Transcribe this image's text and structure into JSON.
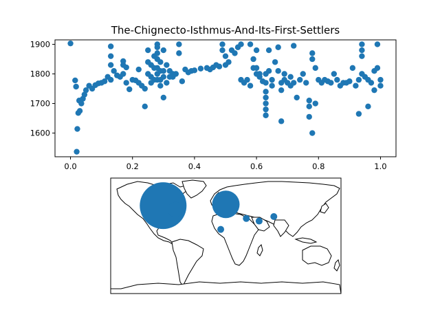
{
  "chart_data": [
    {
      "type": "scatter",
      "title": "The-Chignecto-Isthmus-And-Its-First-Settlers",
      "xlabel": "",
      "ylabel": "",
      "xlim": [
        -0.05,
        1.05
      ],
      "ylim": [
        1520,
        1915
      ],
      "xticks": [
        "0.0",
        "0.2",
        "0.4",
        "0.6",
        "0.8",
        "1.0"
      ],
      "yticks": [
        "1600",
        "1700",
        "1800",
        "1900"
      ],
      "color": "#1f77b4",
      "grid": false,
      "points": [
        [
          0.0,
          1903
        ],
        [
          0.02,
          1537
        ],
        [
          0.022,
          1614
        ],
        [
          0.025,
          1668
        ],
        [
          0.028,
          1710
        ],
        [
          0.03,
          1675
        ],
        [
          0.035,
          1700
        ],
        [
          0.04,
          1716
        ],
        [
          0.045,
          1730
        ],
        [
          0.05,
          1745
        ],
        [
          0.015,
          1778
        ],
        [
          0.018,
          1757
        ],
        [
          0.06,
          1760
        ],
        [
          0.07,
          1750
        ],
        [
          0.08,
          1762
        ],
        [
          0.09,
          1768
        ],
        [
          0.1,
          1770
        ],
        [
          0.11,
          1775
        ],
        [
          0.12,
          1790
        ],
        [
          0.13,
          1780
        ],
        [
          0.13,
          1830
        ],
        [
          0.13,
          1860
        ],
        [
          0.13,
          1893
        ],
        [
          0.14,
          1810
        ],
        [
          0.15,
          1795
        ],
        [
          0.16,
          1790
        ],
        [
          0.17,
          1800
        ],
        [
          0.17,
          1830
        ],
        [
          0.17,
          1843
        ],
        [
          0.18,
          1822
        ],
        [
          0.18,
          1770
        ],
        [
          0.19,
          1748
        ],
        [
          0.2,
          1780
        ],
        [
          0.21,
          1778
        ],
        [
          0.22,
          1815
        ],
        [
          0.22,
          1770
        ],
        [
          0.23,
          1760
        ],
        [
          0.24,
          1690
        ],
        [
          0.24,
          1750
        ],
        [
          0.25,
          1800
        ],
        [
          0.25,
          1840
        ],
        [
          0.25,
          1880
        ],
        [
          0.26,
          1790
        ],
        [
          0.26,
          1830
        ],
        [
          0.27,
          1860
        ],
        [
          0.27,
          1780
        ],
        [
          0.28,
          1900
        ],
        [
          0.28,
          1890
        ],
        [
          0.28,
          1870
        ],
        [
          0.28,
          1850
        ],
        [
          0.28,
          1820
        ],
        [
          0.28,
          1800
        ],
        [
          0.28,
          1780
        ],
        [
          0.29,
          1760
        ],
        [
          0.29,
          1840
        ],
        [
          0.29,
          1810
        ],
        [
          0.3,
          1720
        ],
        [
          0.3,
          1880
        ],
        [
          0.3,
          1790
        ],
        [
          0.31,
          1830
        ],
        [
          0.31,
          1770
        ],
        [
          0.32,
          1810
        ],
        [
          0.33,
          1790
        ],
        [
          0.34,
          1800
        ],
        [
          0.35,
          1900
        ],
        [
          0.35,
          1870
        ],
        [
          0.36,
          1775
        ],
        [
          0.37,
          1815
        ],
        [
          0.38,
          1805
        ],
        [
          0.39,
          1810
        ],
        [
          0.4,
          1812
        ],
        [
          0.42,
          1818
        ],
        [
          0.44,
          1820
        ],
        [
          0.45,
          1815
        ],
        [
          0.46,
          1822
        ],
        [
          0.47,
          1830
        ],
        [
          0.48,
          1825
        ],
        [
          0.49,
          1900
        ],
        [
          0.49,
          1880
        ],
        [
          0.5,
          1860
        ],
        [
          0.5,
          1830
        ],
        [
          0.51,
          1840
        ],
        [
          0.52,
          1880
        ],
        [
          0.53,
          1870
        ],
        [
          0.54,
          1890
        ],
        [
          0.55,
          1900
        ],
        [
          0.55,
          1780
        ],
        [
          0.56,
          1770
        ],
        [
          0.57,
          1780
        ],
        [
          0.58,
          1760
        ],
        [
          0.58,
          1900
        ],
        [
          0.59,
          1850
        ],
        [
          0.59,
          1820
        ],
        [
          0.6,
          1800
        ],
        [
          0.6,
          1880
        ],
        [
          0.61,
          1790
        ],
        [
          0.62,
          1775
        ],
        [
          0.63,
          1800
        ],
        [
          0.63,
          1770
        ],
        [
          0.63,
          1740
        ],
        [
          0.63,
          1720
        ],
        [
          0.63,
          1700
        ],
        [
          0.63,
          1680
        ],
        [
          0.63,
          1660
        ],
        [
          0.64,
          1880
        ],
        [
          0.64,
          1810
        ],
        [
          0.65,
          1780
        ],
        [
          0.65,
          1760
        ],
        [
          0.66,
          1840
        ],
        [
          0.67,
          1890
        ],
        [
          0.67,
          1810
        ],
        [
          0.68,
          1770
        ],
        [
          0.68,
          1745
        ],
        [
          0.68,
          1640
        ],
        [
          0.69,
          1800
        ],
        [
          0.69,
          1780
        ],
        [
          0.7,
          1770
        ],
        [
          0.71,
          1790
        ],
        [
          0.71,
          1760
        ],
        [
          0.72,
          1770
        ],
        [
          0.72,
          1895
        ],
        [
          0.73,
          1720
        ],
        [
          0.74,
          1780
        ],
        [
          0.75,
          1800
        ],
        [
          0.76,
          1770
        ],
        [
          0.77,
          1710
        ],
        [
          0.77,
          1690
        ],
        [
          0.77,
          1655
        ],
        [
          0.78,
          1600
        ],
        [
          0.78,
          1870
        ],
        [
          0.78,
          1850
        ],
        [
          0.79,
          1820
        ],
        [
          0.79,
          1700
        ],
        [
          0.8,
          1780
        ],
        [
          0.81,
          1770
        ],
        [
          0.82,
          1780
        ],
        [
          0.83,
          1775
        ],
        [
          0.84,
          1770
        ],
        [
          0.85,
          1800
        ],
        [
          0.86,
          1780
        ],
        [
          0.87,
          1760
        ],
        [
          0.88,
          1770
        ],
        [
          0.89,
          1770
        ],
        [
          0.9,
          1775
        ],
        [
          0.91,
          1820
        ],
        [
          0.92,
          1760
        ],
        [
          0.93,
          1665
        ],
        [
          0.93,
          1780
        ],
        [
          0.94,
          1900
        ],
        [
          0.94,
          1880
        ],
        [
          0.94,
          1860
        ],
        [
          0.94,
          1800
        ],
        [
          0.95,
          1790
        ],
        [
          0.96,
          1780
        ],
        [
          0.96,
          1690
        ],
        [
          0.97,
          1770
        ],
        [
          0.98,
          1745
        ],
        [
          0.98,
          1810
        ],
        [
          0.99,
          1900
        ],
        [
          0.99,
          1820
        ],
        [
          1.0,
          1780
        ],
        [
          1.0,
          1760
        ],
        [
          0.6,
          1820
        ],
        [
          0.61,
          1800
        ],
        [
          0.32,
          1790
        ],
        [
          0.27,
          1820
        ],
        [
          0.29,
          1780
        ],
        [
          0.3,
          1810
        ],
        [
          0.26,
          1770
        ],
        [
          0.33,
          1800
        ]
      ]
    },
    {
      "type": "bubble-map",
      "projection": "equirectangular",
      "color": "#1f77b4",
      "bubbles": [
        {
          "lat": 47,
          "lon": -98,
          "size": 34
        },
        {
          "lat": 41,
          "lon": -79,
          "size": 11
        },
        {
          "lat": 49,
          "lon": 0,
          "size": 20
        },
        {
          "lat": 10,
          "lon": -8,
          "size": 5
        },
        {
          "lat": 27,
          "lon": 32,
          "size": 5
        },
        {
          "lat": 23,
          "lon": 52,
          "size": 5
        },
        {
          "lat": 30,
          "lon": 75,
          "size": 5
        }
      ]
    }
  ]
}
